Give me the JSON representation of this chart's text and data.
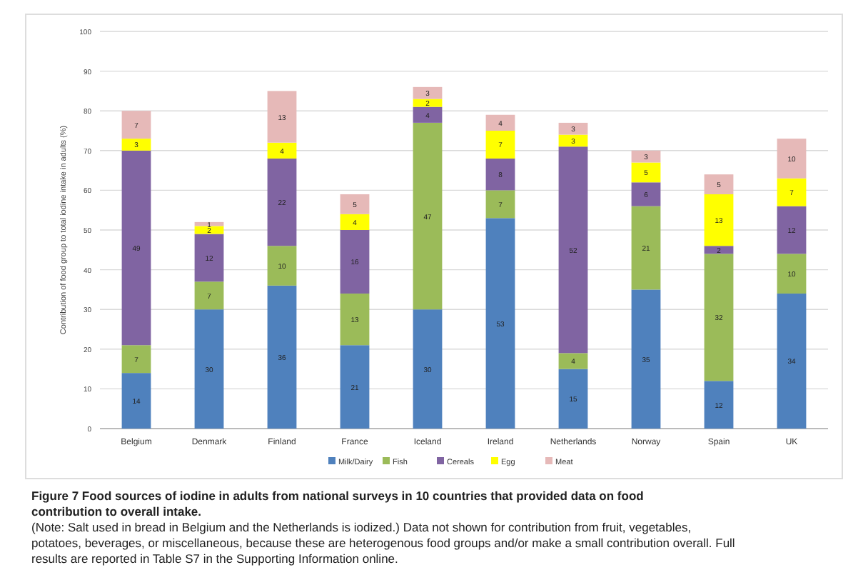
{
  "chart_data": {
    "type": "bar",
    "stacked": true,
    "title": "Figure 7 Food sources of iodine in adults from national surveys in 10 countries that provided data on food contribution to overall intake.",
    "ylabel": "Contribution of food group to total iodine intake in adults (%)",
    "categories": [
      "Belgium",
      "Denmark",
      "Finland",
      "France",
      "Iceland",
      "Ireland",
      "Netherlands",
      "Norway",
      "Spain",
      "UK"
    ],
    "series": [
      {
        "name": "Milk/Dairy",
        "color": "#4f81bd",
        "values": [
          14,
          30,
          36,
          21,
          30,
          53,
          15,
          35,
          12,
          34
        ]
      },
      {
        "name": "Fish",
        "color": "#9bbb59",
        "values": [
          7,
          7,
          10,
          13,
          47,
          7,
          4,
          21,
          32,
          10
        ]
      },
      {
        "name": "Cereals",
        "color": "#8064a2",
        "values": [
          49,
          12,
          22,
          16,
          4,
          8,
          52,
          6,
          2,
          12
        ]
      },
      {
        "name": "Egg",
        "color": "#ffff00",
        "values": [
          3,
          2,
          4,
          4,
          2,
          7,
          3,
          5,
          13,
          7
        ]
      },
      {
        "name": "Meat",
        "color": "#e6b9b8",
        "values": [
          7,
          1,
          13,
          5,
          3,
          4,
          3,
          3,
          5,
          10
        ]
      }
    ],
    "ylim": [
      0,
      100
    ],
    "yticks": [
      0,
      10,
      20,
      30,
      40,
      50,
      60,
      70,
      80,
      90,
      100
    ],
    "grid": "y",
    "legend": "bottom",
    "data_labels": true,
    "annotations": [
      "(Note: Salt used in bread in Belgium and the Netherlands is iodized.) Data not shown for contribution from fruit, vegetables, potatoes, beverages, or miscellaneous, because these are heterogenous food groups and/or make a small contribution overall. Full results are reported in Table S7 in the Supporting Information online."
    ]
  }
}
